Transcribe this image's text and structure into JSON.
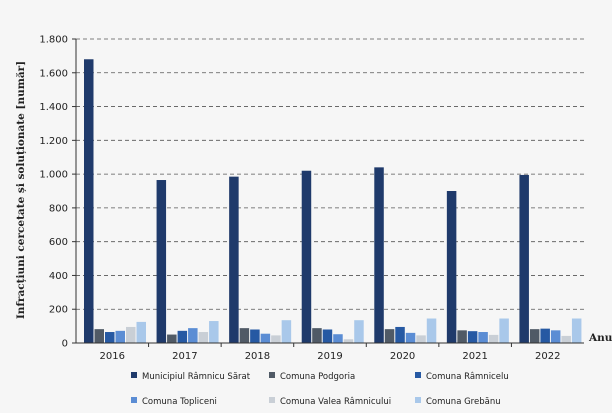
{
  "chart_data": {
    "type": "bar",
    "ylabel": "Infracțiuni cercetate și soluționate [număr]",
    "xlabel": "Anul",
    "categories": [
      "2016",
      "2017",
      "2018",
      "2019",
      "2020",
      "2021",
      "2022"
    ],
    "ylim": [
      0,
      1800
    ],
    "yticks": [
      0,
      200,
      400,
      600,
      800,
      1000,
      1200,
      1400,
      1600,
      1800
    ],
    "ytick_labels": [
      "0",
      "200",
      "400",
      "600",
      "800",
      "1.000",
      "1.200",
      "1.400",
      "1.600",
      "1.800"
    ],
    "grid": true,
    "legend_position": "bottom",
    "series": [
      {
        "name": "Municipiul Râmnicu Sărat",
        "color": "#1f3a6b",
        "values": [
          1680,
          965,
          985,
          1020,
          1040,
          900,
          995
        ]
      },
      {
        "name": "Comuna Podgoria",
        "color": "#505a66",
        "values": [
          82,
          50,
          88,
          88,
          82,
          75,
          82
        ]
      },
      {
        "name": "Comuna Râmnicelu",
        "color": "#2659a3",
        "values": [
          65,
          72,
          80,
          80,
          95,
          70,
          85
        ]
      },
      {
        "name": "Comuna Topliceni",
        "color": "#5b8dd4",
        "values": [
          72,
          88,
          55,
          52,
          60,
          65,
          75
        ]
      },
      {
        "name": "Comuna Valea Râmnicului",
        "color": "#c9cfd6",
        "values": [
          95,
          65,
          45,
          22,
          45,
          48,
          42
        ]
      },
      {
        "name": "Comuna Grebănu",
        "color": "#a9c8ea",
        "values": [
          125,
          130,
          135,
          135,
          145,
          145,
          145
        ]
      }
    ]
  }
}
